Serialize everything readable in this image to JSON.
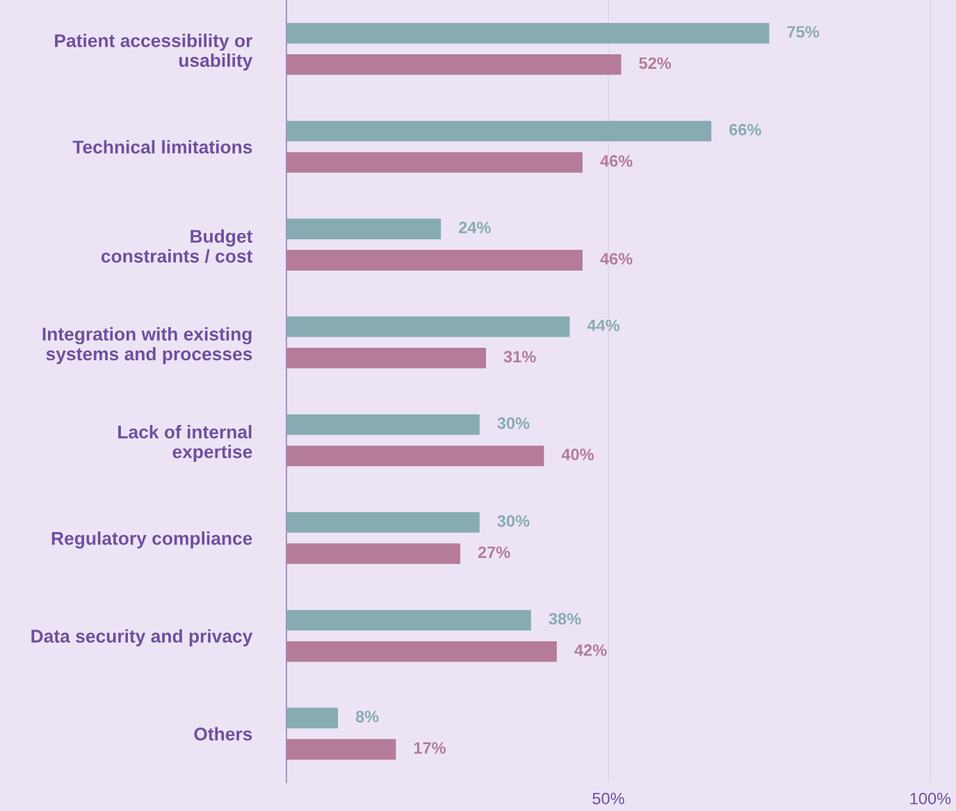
{
  "chart_data": {
    "type": "bar",
    "orientation": "horizontal",
    "categories": [
      "Patient accessibility or\nusability",
      "Technical limitations",
      "Budget\nconstraints / cost",
      "Integration with existing\nsystems and processes",
      "Lack of internal\nexpertise",
      "Regulatory compliance",
      "Data security and privacy",
      "Others"
    ],
    "series": [
      {
        "color": "#87abb3",
        "values": [
          75,
          66,
          24,
          44,
          30,
          30,
          38,
          8
        ],
        "value_labels": [
          "75%",
          "66%",
          "24%",
          "44%",
          "30%",
          "30%",
          "38%",
          "8%"
        ]
      },
      {
        "color": "#b47c98",
        "values": [
          52,
          46,
          46,
          31,
          40,
          27,
          42,
          17
        ],
        "value_labels": [
          "52%",
          "46%",
          "46%",
          "31%",
          "40%",
          "27%",
          "42%",
          "17%"
        ]
      }
    ],
    "xlim": [
      0,
      104
    ],
    "xticks": [
      {
        "value": 50,
        "label": "50%"
      },
      {
        "value": 100,
        "label": "100%"
      }
    ],
    "grid": "x",
    "legend": false
  }
}
